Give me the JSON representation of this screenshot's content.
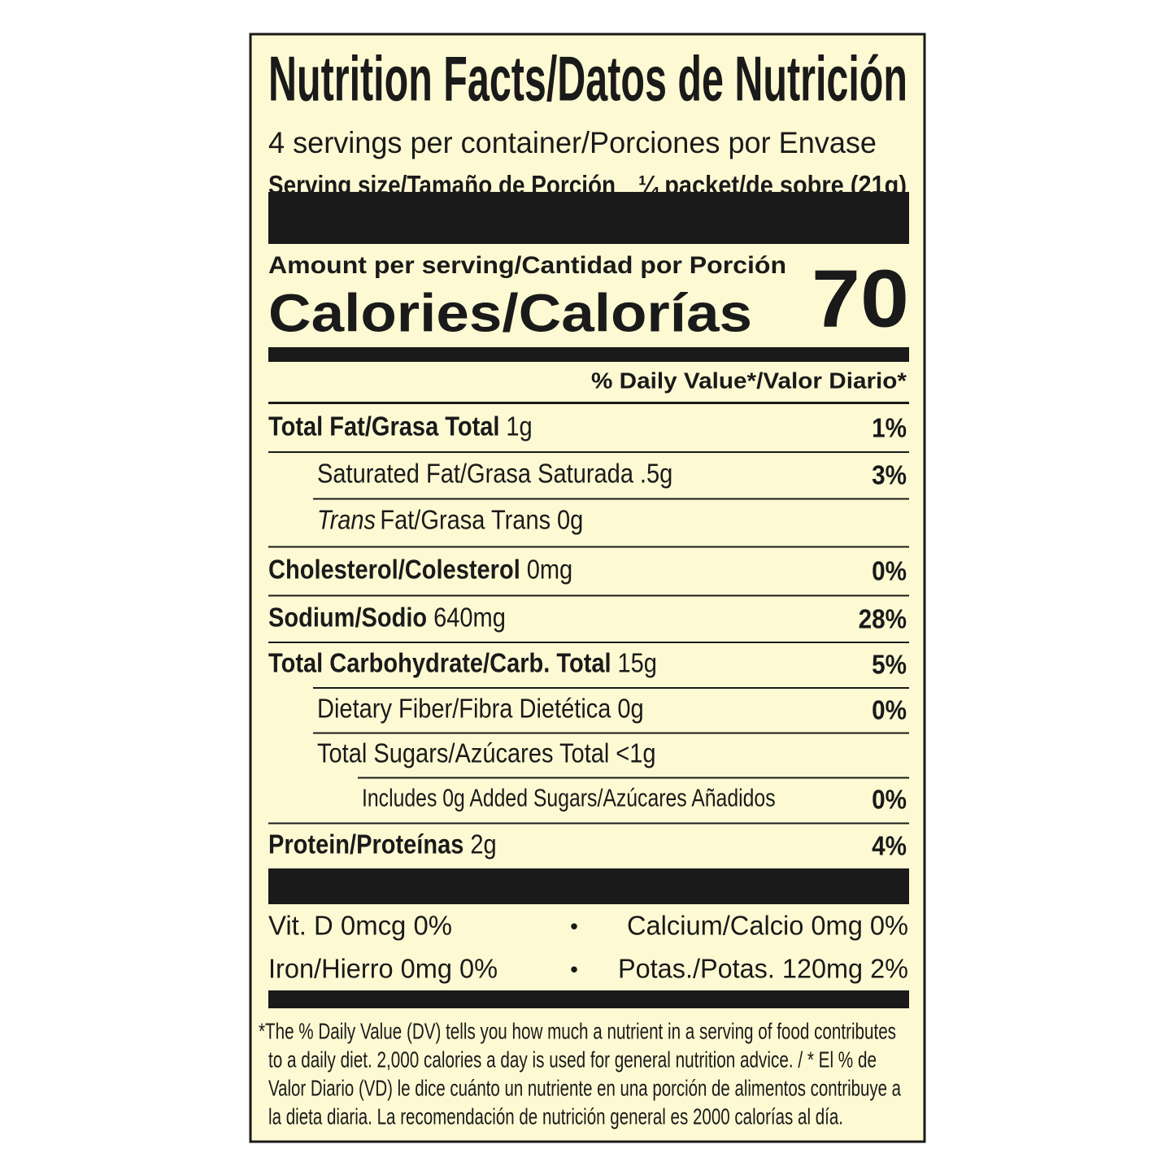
{
  "header": {
    "title": "Nutrition Facts/Datos de Nutrición",
    "servings": "4 servings per container/Porciones por Envase",
    "serving_size_label": "Serving size/Tamaño de Porción",
    "serving_size_value": "¼ packet/de sobre (21g)"
  },
  "calories": {
    "amount_per_serving": "Amount per serving/Cantidad por Porción",
    "label": "Calories/Calorías",
    "value": "70"
  },
  "daily_value_header": "% Daily Value*/Valor Diario*",
  "rows": [
    {
      "name": "Total Fat/Grasa Total",
      "amount": "1g",
      "dv": "1%"
    },
    {
      "name": "Saturated Fat/Grasa Saturada",
      "amount": ".5g",
      "dv": "3%"
    },
    {
      "name_italic": "Trans",
      "name": "Fat/Grasa Trans",
      "amount": "0g"
    },
    {
      "name": "Cholesterol/Colesterol",
      "amount": "0mg",
      "dv": "0%"
    },
    {
      "name": "Sodium/Sodio",
      "amount": "640mg",
      "dv": "28%"
    },
    {
      "name": "Total Carbohydrate/Carb. Total",
      "amount": "15g",
      "dv": "5%"
    },
    {
      "name": "Dietary Fiber/Fibra Dietética",
      "amount": "0g",
      "dv": "0%"
    },
    {
      "name": "Total Sugars/Azúcares Total",
      "amount": "<1g"
    },
    {
      "name": "Includes 0g Added Sugars/Azúcares Añadidos",
      "dv": "0%"
    },
    {
      "name": "Protein/Proteínas",
      "amount": "2g",
      "dv": "4%"
    }
  ],
  "vitamins": [
    {
      "left": "Vit. D 0mcg 0%",
      "separator": "•",
      "right": "Calcium/Calcio 0mg 0%"
    },
    {
      "left": "Iron/Hierro 0mg 0%",
      "separator": "•",
      "right": "Potas./Potas. 120mg 2%"
    }
  ],
  "footnote": [
    "*The % Daily Value (DV) tells you how much a nutrient in a serving of food contributes",
    "to a daily diet. 2,000 calories a day is used for general nutrition advice. / * El % de",
    "Valor Diario (VD) le dice cuánto un nutriente en una porción de alimentos contribuye a",
    "la dieta diaria. La recomendación de nutrición general es 2000 calorías al día."
  ]
}
